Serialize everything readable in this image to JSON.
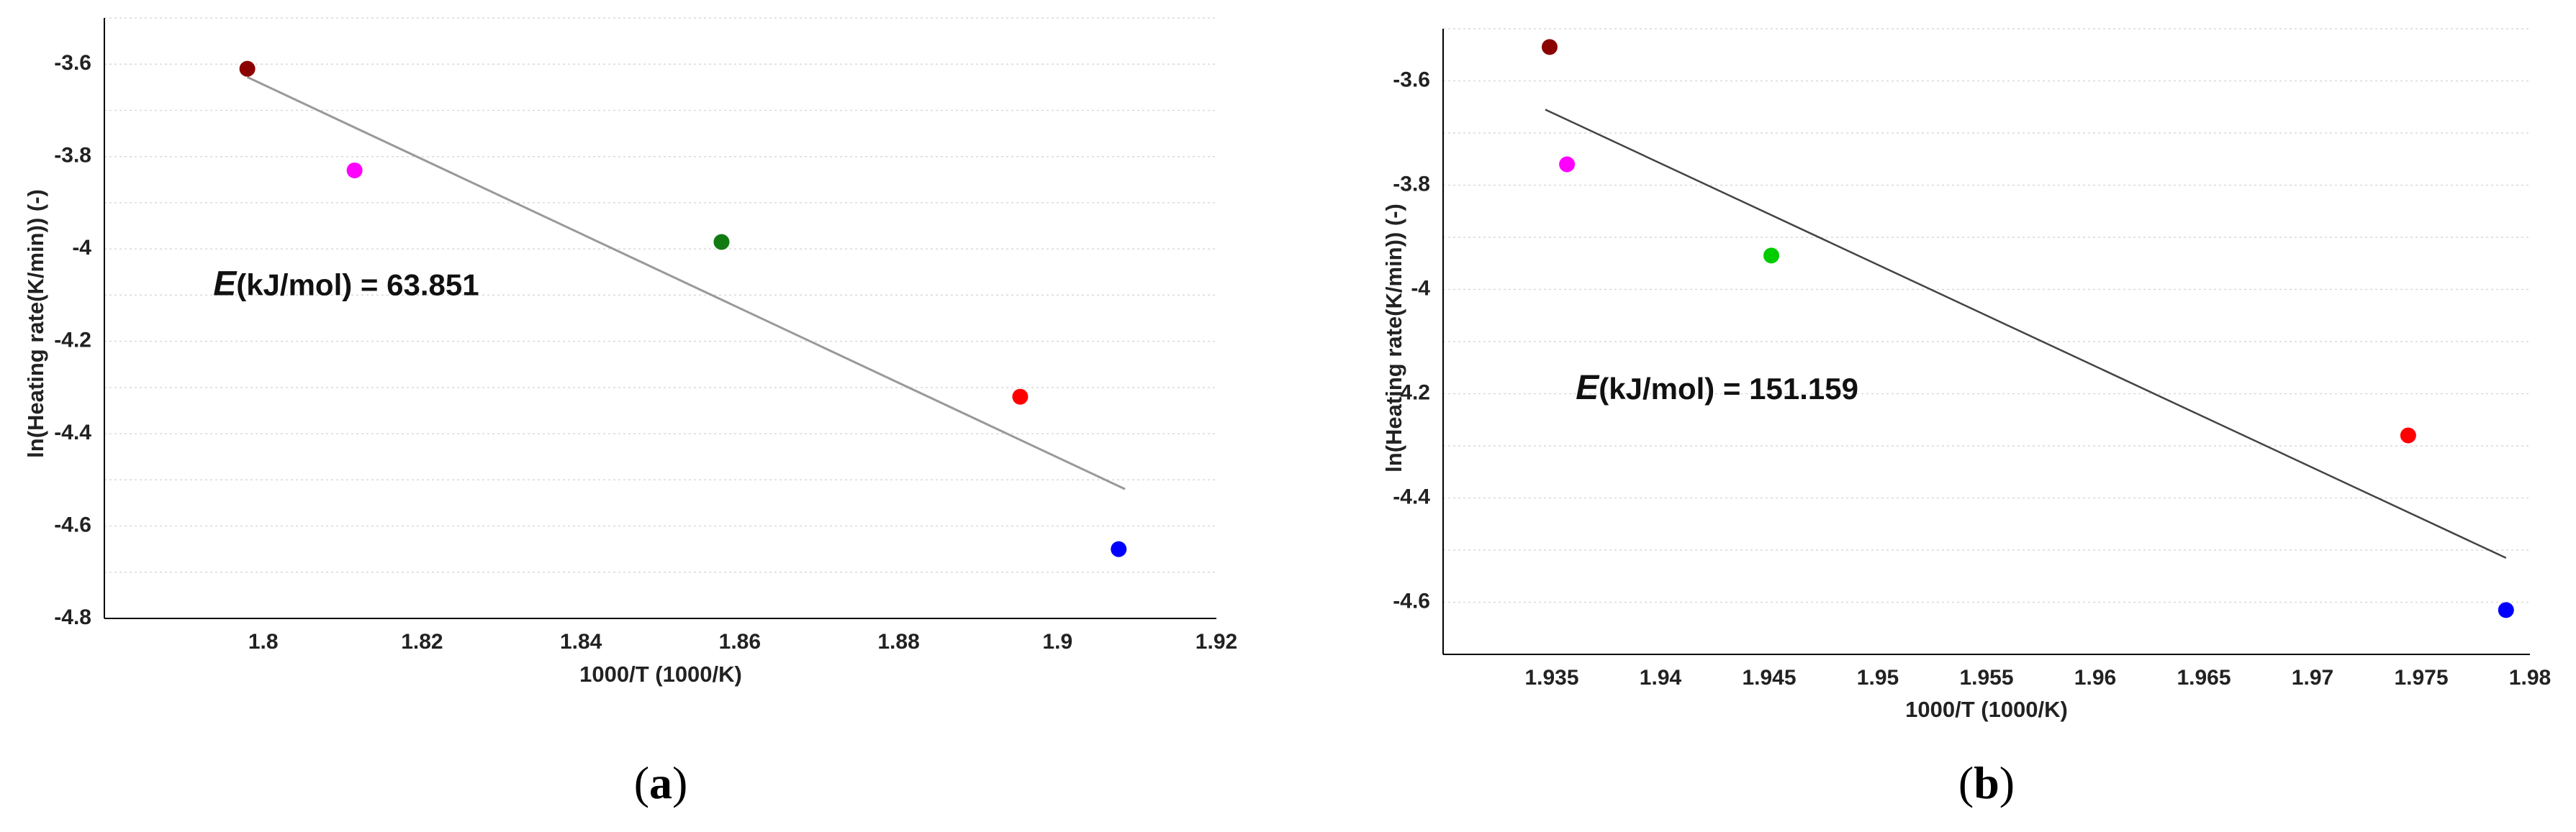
{
  "chart_data": [
    {
      "type": "scatter",
      "panel_label": "a",
      "xlabel": "1000/T (1000/K)",
      "ylabel": "ln(Heating rate(K/min)) (-)",
      "xlim": [
        1.78,
        1.92
      ],
      "ylim": [
        -4.8,
        -3.5
      ],
      "xticks": [
        "1.8",
        "1.82",
        "1.84",
        "1.86",
        "1.88",
        "1.9",
        "1.92"
      ],
      "xtick_values": [
        1.8,
        1.82,
        1.84,
        1.86,
        1.88,
        1.9,
        1.92
      ],
      "yticks": [
        "-3.6",
        "-3.8",
        "-4",
        "-4.2",
        "-4.4",
        "-4.6",
        "-4.8"
      ],
      "ytick_values": [
        -3.6,
        -3.8,
        -4.0,
        -4.2,
        -4.4,
        -4.6,
        -4.8
      ],
      "grid_values": [
        -3.5,
        -3.6,
        -3.7,
        -3.8,
        -3.9,
        -4.0,
        -4.1,
        -4.2,
        -4.3,
        -4.4,
        -4.5,
        -4.6,
        -4.7
      ],
      "points": [
        {
          "x": 1.798,
          "y": -3.61,
          "color": "#8b0000"
        },
        {
          "x": 1.8115,
          "y": -3.83,
          "color": "#ff00ff"
        },
        {
          "x": 1.8577,
          "y": -3.985,
          "color": "#127a12"
        },
        {
          "x": 1.8953,
          "y": -4.32,
          "color": "#ff0000"
        },
        {
          "x": 1.9077,
          "y": -4.65,
          "color": "#0000ff"
        }
      ],
      "fit_line": {
        "x1": 1.798,
        "y1": -3.628,
        "x2": 1.9085,
        "y2": -4.52,
        "color": "#999999"
      },
      "annotation": {
        "var": "E",
        "text": "(kJ/mol) = 63.851",
        "x": 1.7937,
        "y": -4.1
      }
    },
    {
      "type": "scatter",
      "panel_label": "b",
      "xlabel": "1000/T (1000/K)",
      "ylabel": "ln(Heating rate(K/min)) (-)",
      "xlim": [
        1.93,
        1.98
      ],
      "ylim": [
        -4.7,
        -3.5
      ],
      "xticks": [
        "1.935",
        "1.94",
        "1.945",
        "1.95",
        "1.955",
        "1.96",
        "1.965",
        "1.97",
        "1.975",
        "1.98"
      ],
      "xtick_values": [
        1.935,
        1.94,
        1.945,
        1.95,
        1.955,
        1.96,
        1.965,
        1.97,
        1.975,
        1.98
      ],
      "yticks": [
        "-3.6",
        "-3.8",
        "-4",
        "-4.2",
        "-4.4",
        "-4.6"
      ],
      "ytick_values": [
        -3.6,
        -3.8,
        -4.0,
        -4.2,
        -4.4,
        -4.6
      ],
      "grid_values": [
        -3.5,
        -3.6,
        -3.7,
        -3.8,
        -3.9,
        -4.0,
        -4.1,
        -4.2,
        -4.3,
        -4.4,
        -4.5,
        -4.6
      ],
      "points": [
        {
          "x": 1.9349,
          "y": -3.535,
          "color": "#8b0000"
        },
        {
          "x": 1.9357,
          "y": -3.76,
          "color": "#ff00ff"
        },
        {
          "x": 1.9451,
          "y": -3.935,
          "color": "#00cc00"
        },
        {
          "x": 1.9744,
          "y": -4.28,
          "color": "#ff0000"
        },
        {
          "x": 1.9789,
          "y": -4.615,
          "color": "#0000ff"
        }
      ],
      "fit_line": {
        "x1": 1.9347,
        "y1": -3.655,
        "x2": 1.9789,
        "y2": -4.515,
        "color": "#444444"
      },
      "annotation": {
        "var": "E",
        "text": "(kJ/mol) = 151.159",
        "x": 1.9361,
        "y": -4.21
      }
    }
  ]
}
